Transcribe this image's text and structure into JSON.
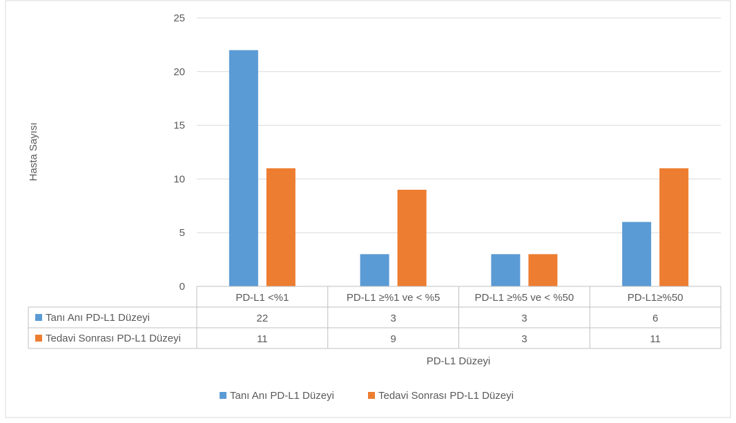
{
  "chart_data": {
    "type": "bar",
    "title": "",
    "xlabel": "PD-L1 Düzeyi",
    "ylabel": "Hasta Sayısı",
    "ylim": [
      0,
      25
    ],
    "yticks": [
      0,
      5,
      10,
      15,
      20,
      25
    ],
    "categories": [
      "PD-L1 <%1",
      "PD-L1 ≥%1 ve < %5",
      "PD-L1 ≥%5 ve < %50",
      "PD-L1≥%50"
    ],
    "series": [
      {
        "name": "Tanı Anı PD-L1 Düzeyi",
        "color": "#5b9bd5",
        "values": [
          22,
          3,
          3,
          6
        ]
      },
      {
        "name": "Tedavi Sonrası PD-L1 Düzeyi",
        "color": "#ed7d31",
        "values": [
          11,
          9,
          3,
          11
        ]
      }
    ],
    "grid": true,
    "data_table": true,
    "legend_position": "bottom"
  }
}
